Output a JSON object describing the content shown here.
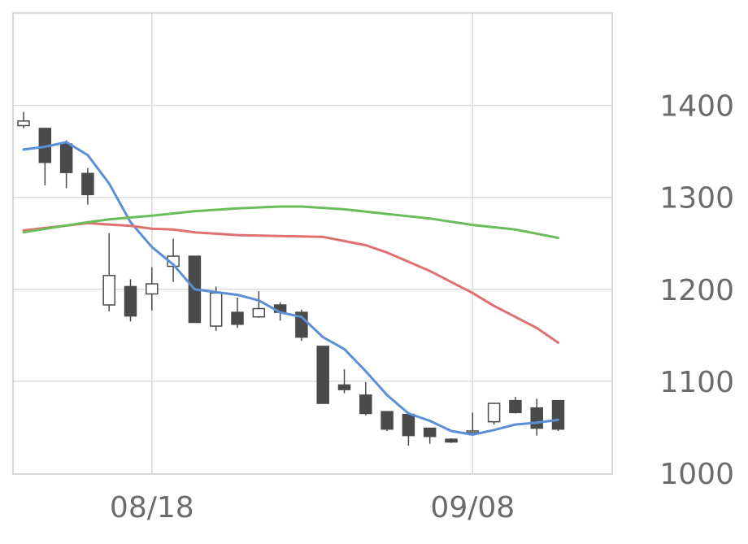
{
  "chart_data": {
    "type": "candlestick",
    "x_tick_labels": [
      {
        "label": "08/18",
        "index": 6
      },
      {
        "label": "09/08",
        "index": 21
      }
    ],
    "y_tick_labels": [
      "1000",
      "1100",
      "1200",
      "1300",
      "1400"
    ],
    "ylim": [
      1000,
      1500
    ],
    "grid": true,
    "colors": {
      "down_candle": "#4a4a4a",
      "up_candle": "#ffffff",
      "candle_outline": "#4a4a4a",
      "short_ma": "#5b8fd6",
      "mid_ma": "#e07070",
      "long_ma": "#6bbd5b",
      "grid": "#dddddd",
      "frame": "#cccccc",
      "tick_text": "#6b6b6b"
    },
    "candles": [
      {
        "o": 1378,
        "h": 1393,
        "l": 1375,
        "c": 1383
      },
      {
        "o": 1375,
        "h": 1375,
        "l": 1313,
        "c": 1338
      },
      {
        "o": 1358,
        "h": 1362,
        "l": 1310,
        "c": 1327
      },
      {
        "o": 1326,
        "h": 1332,
        "l": 1292,
        "c": 1303
      },
      {
        "o": 1183,
        "h": 1261,
        "l": 1176,
        "c": 1215
      },
      {
        "o": 1203,
        "h": 1211,
        "l": 1165,
        "c": 1171
      },
      {
        "o": 1195,
        "h": 1224,
        "l": 1177,
        "c": 1206
      },
      {
        "o": 1225,
        "h": 1255,
        "l": 1208,
        "c": 1236
      },
      {
        "o": 1236,
        "h": 1236,
        "l": 1164,
        "c": 1164
      },
      {
        "o": 1160,
        "h": 1203,
        "l": 1155,
        "c": 1196
      },
      {
        "o": 1175,
        "h": 1191,
        "l": 1158,
        "c": 1162
      },
      {
        "o": 1170,
        "h": 1198,
        "l": 1169,
        "c": 1179
      },
      {
        "o": 1183,
        "h": 1186,
        "l": 1166,
        "c": 1175
      },
      {
        "o": 1175,
        "h": 1178,
        "l": 1144,
        "c": 1148
      },
      {
        "o": 1138,
        "h": 1138,
        "l": 1076,
        "c": 1076
      },
      {
        "o": 1096,
        "h": 1113,
        "l": 1087,
        "c": 1091
      },
      {
        "o": 1085,
        "h": 1099,
        "l": 1063,
        "c": 1065
      },
      {
        "o": 1067,
        "h": 1067,
        "l": 1046,
        "c": 1048
      },
      {
        "o": 1064,
        "h": 1067,
        "l": 1030,
        "c": 1041
      },
      {
        "o": 1049,
        "h": 1049,
        "l": 1032,
        "c": 1040
      },
      {
        "o": 1037,
        "h": 1038,
        "l": 1033,
        "c": 1034
      },
      {
        "o": 1045,
        "h": 1066,
        "l": 1044,
        "c": 1046
      },
      {
        "o": 1056,
        "h": 1076,
        "l": 1053,
        "c": 1076
      },
      {
        "o": 1079,
        "h": 1083,
        "l": 1065,
        "c": 1066
      },
      {
        "o": 1071,
        "h": 1081,
        "l": 1041,
        "c": 1049
      },
      {
        "o": 1079,
        "h": 1079,
        "l": 1046,
        "c": 1048
      }
    ],
    "series": [
      {
        "key": "short_ma",
        "points": [
          [
            0,
            1352
          ],
          [
            1,
            1355
          ],
          [
            2,
            1360
          ],
          [
            3,
            1346
          ],
          [
            4,
            1315
          ],
          [
            5,
            1273
          ],
          [
            6,
            1246
          ],
          [
            7,
            1227
          ],
          [
            8,
            1200
          ],
          [
            9,
            1197
          ],
          [
            10,
            1194
          ],
          [
            11,
            1188
          ],
          [
            12,
            1175
          ],
          [
            13,
            1170
          ],
          [
            14,
            1148
          ],
          [
            15,
            1135
          ],
          [
            16,
            1111
          ],
          [
            17,
            1085
          ],
          [
            18,
            1065
          ],
          [
            19,
            1057
          ],
          [
            20,
            1046
          ],
          [
            21,
            1042
          ],
          [
            22,
            1047
          ],
          [
            23,
            1053
          ],
          [
            24,
            1055
          ],
          [
            25,
            1058
          ]
        ]
      },
      {
        "key": "mid_ma",
        "points": [
          [
            0,
            1264
          ],
          [
            3,
            1272
          ],
          [
            5,
            1269
          ],
          [
            6,
            1266
          ],
          [
            7,
            1265
          ],
          [
            8,
            1262
          ],
          [
            10,
            1259
          ],
          [
            12,
            1258
          ],
          [
            14,
            1257
          ],
          [
            16,
            1248
          ],
          [
            17,
            1240
          ],
          [
            18,
            1230
          ],
          [
            19,
            1220
          ],
          [
            20,
            1208
          ],
          [
            21,
            1196
          ],
          [
            22,
            1182
          ],
          [
            23,
            1170
          ],
          [
            24,
            1158
          ],
          [
            25,
            1142
          ]
        ]
      },
      {
        "key": "long_ma",
        "points": [
          [
            0,
            1262
          ],
          [
            3,
            1273
          ],
          [
            4,
            1276
          ],
          [
            6,
            1280
          ],
          [
            8,
            1285
          ],
          [
            10,
            1288
          ],
          [
            12,
            1290
          ],
          [
            13,
            1290
          ],
          [
            15,
            1287
          ],
          [
            17,
            1282
          ],
          [
            19,
            1277
          ],
          [
            21,
            1270
          ],
          [
            23,
            1265
          ],
          [
            25,
            1256
          ]
        ]
      }
    ]
  }
}
